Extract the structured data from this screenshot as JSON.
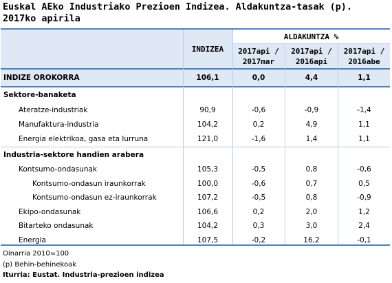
{
  "title_line1": "Euskal AEko Industriako Prezioen Indizea. Aldakuntza-tasak (p).",
  "title_line2": "2017ko apirila",
  "header": {
    "indizea": "INDIZEA",
    "aldakuntza": "ALDAKUNTZA %",
    "col1_l1": "2017api /",
    "col1_l2": "2017mar",
    "col2_l1": "2017api /",
    "col2_l2": "2016api",
    "col3_l1": "2017api /",
    "col3_l2": "2016abe"
  },
  "general": {
    "label": "INDIZE OROKORRA",
    "index": "106,1",
    "v1": "0,0",
    "v2": "4,4",
    "v3": "1,1"
  },
  "section1": "Sektore-banaketa",
  "sector_rows": [
    {
      "label": "Ateratze-industriak",
      "index": "90,9",
      "v1": "-0,6",
      "v2": "-0,9",
      "v3": "-1,4"
    },
    {
      "label": "Manufaktura-industria",
      "index": "104,2",
      "v1": "0,2",
      "v2": "4,9",
      "v3": "1,1"
    },
    {
      "label": "Energia elektrikoa, gasa eta lurruna",
      "index": "121,0",
      "v1": "-1,6",
      "v2": "1,4",
      "v3": "1,1"
    }
  ],
  "section2": "Industria-sektore handien arabera",
  "industry_rows": [
    {
      "label": "Kontsumo-ondasunak",
      "index": "105,3",
      "v1": "-0,5",
      "v2": "0,8",
      "v3": "-0,6"
    },
    {
      "label": "Kontsumo-ondasun iraunkorrak",
      "index": "100,0",
      "v1": "-0,6",
      "v2": "0,7",
      "v3": "0,5"
    },
    {
      "label": "Kontsumo-ondasun ez-iraunkorrak",
      "index": "107,2",
      "v1": "-0,5",
      "v2": "0,8",
      "v3": "-0,9"
    },
    {
      "label": "Ekipo-ondasunak",
      "index": "106,6",
      "v1": "0,2",
      "v2": "2,0",
      "v3": "1,2"
    },
    {
      "label": "Bitarteko ondasunak",
      "index": "104,2",
      "v1": "0,3",
      "v2": "3,0",
      "v3": "2,4"
    },
    {
      "label": "Energia",
      "index": "107,5",
      "v1": "-0,2",
      "v2": "16,2",
      "v3": "-0,1"
    }
  ],
  "notes": {
    "base": "Oinarria 2010=100",
    "provisional": "(p) Behin-behinekoak",
    "source": "Iturria: Eustat. Industria-prezioen indizea"
  },
  "colors": {
    "accent_line": "#4f81bd",
    "shade": "#dfe9f6",
    "grid": "#b8cce4"
  }
}
